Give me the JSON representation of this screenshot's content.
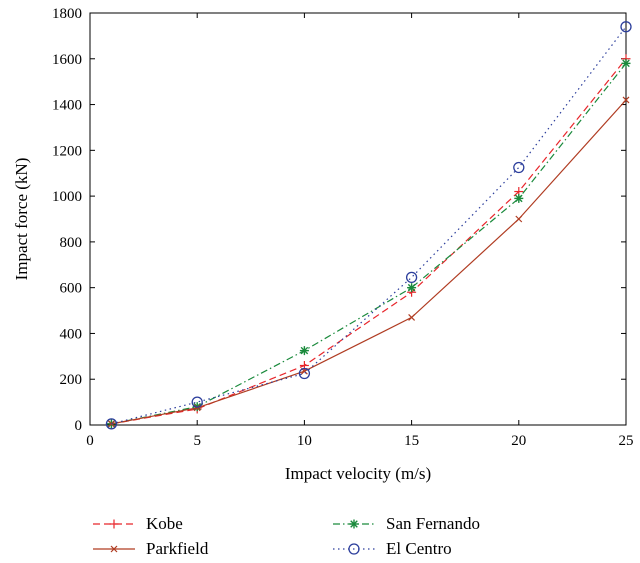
{
  "chart_data": {
    "type": "line",
    "title": "",
    "xlabel": "Impact velocity (m/s)",
    "ylabel": "Impact force (kN)",
    "xlim": [
      0,
      25
    ],
    "ylim": [
      0,
      1800
    ],
    "xticks": [
      0,
      5,
      10,
      15,
      20,
      25
    ],
    "yticks": [
      0,
      200,
      400,
      600,
      800,
      1000,
      1200,
      1400,
      1600,
      1800
    ],
    "grid": false,
    "legend_position": "bottom",
    "x": [
      1,
      5,
      10,
      15,
      20,
      25
    ],
    "series": [
      {
        "name": "Kobe",
        "values": [
          5,
          70,
          260,
          580,
          1020,
          1600
        ],
        "color": "#e8262b",
        "dash": "dashed",
        "marker": "plus"
      },
      {
        "name": "San Fernando",
        "values": [
          5,
          80,
          325,
          600,
          990,
          1580
        ],
        "color": "#1a8a3c",
        "dash": "dashdot",
        "marker": "star"
      },
      {
        "name": "Parkfield",
        "values": [
          5,
          75,
          235,
          470,
          900,
          1420
        ],
        "color": "#b03c22",
        "dash": "solid",
        "marker": "x"
      },
      {
        "name": "El Centro",
        "values": [
          5,
          100,
          225,
          645,
          1125,
          1740
        ],
        "color": "#2c3e9c",
        "dash": "dotted",
        "marker": "circle"
      }
    ]
  }
}
